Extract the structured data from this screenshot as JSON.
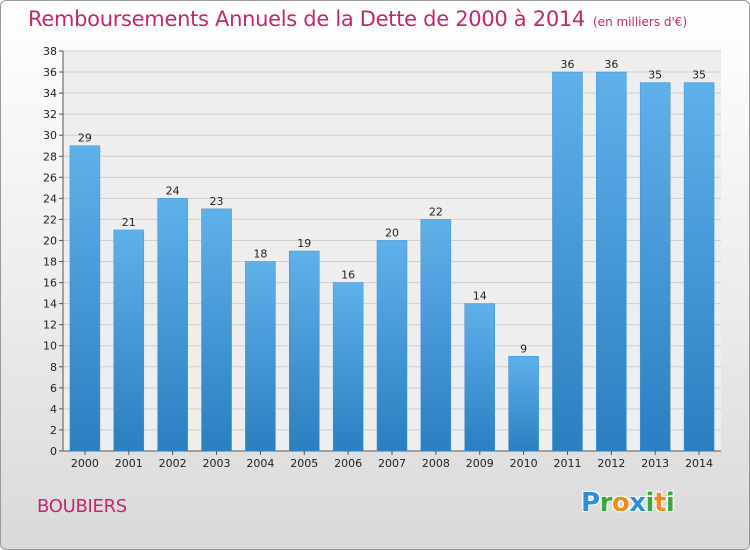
{
  "header": {
    "title": "Remboursements Annuels de la Dette de 2000 à 2014",
    "unit": "(en milliers d'€)"
  },
  "footer": {
    "commune": "BOUBIERS",
    "logo_letters": [
      "P",
      "r",
      "o",
      "x",
      "i",
      "t",
      "i"
    ],
    "logo_colors": [
      "#2e8fd6",
      "#3aa83a",
      "#f08c1e",
      "#2e8fd6",
      "#3aa83a",
      "#f08c1e",
      "#3aa83a"
    ]
  },
  "colors": {
    "title": "#c0286f",
    "bar_top": "#5fb1ea",
    "bar_bottom": "#2a7fc1",
    "grid": "#cfcfcf",
    "plot_bg": "#eeeeee"
  },
  "chart_data": {
    "type": "bar",
    "title": "Remboursements Annuels de la Dette de 2000 à 2014",
    "xlabel": "",
    "ylabel": "",
    "categories": [
      "2000",
      "2001",
      "2002",
      "2003",
      "2004",
      "2005",
      "2006",
      "2007",
      "2008",
      "2009",
      "2010",
      "2011",
      "2012",
      "2013",
      "2014"
    ],
    "values": [
      29,
      21,
      24,
      23,
      18,
      19,
      16,
      20,
      22,
      14,
      9,
      36,
      36,
      35,
      35
    ],
    "ylim": [
      0,
      38
    ],
    "ytick_step": 2,
    "grid": true
  }
}
